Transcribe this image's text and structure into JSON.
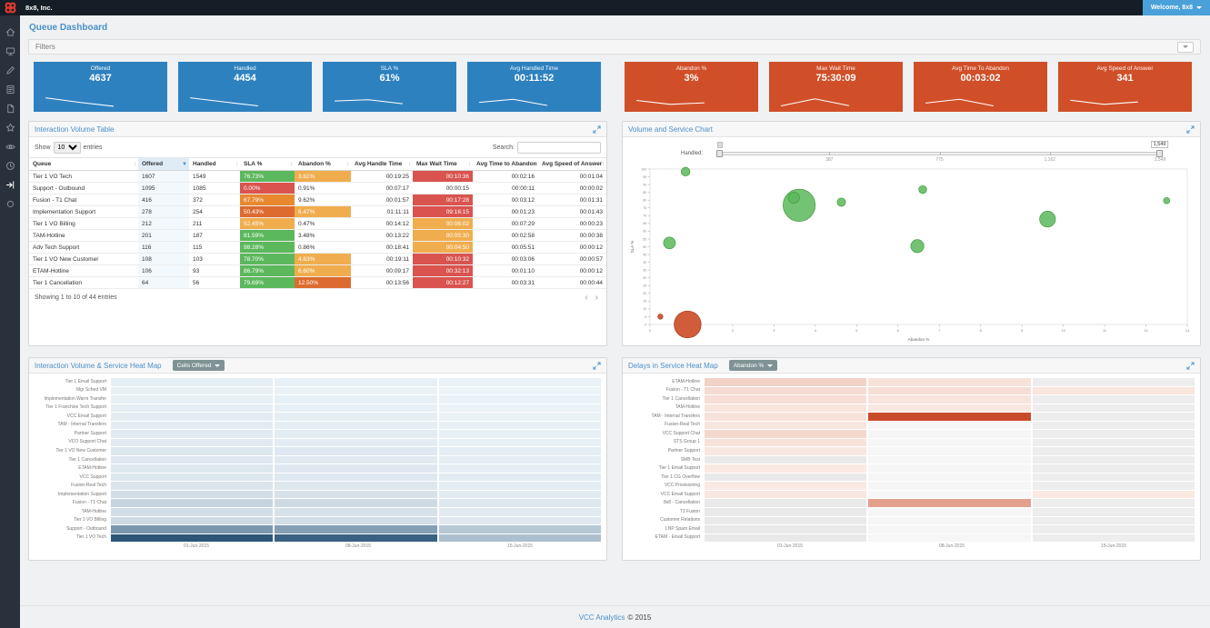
{
  "topbar": {
    "company": "8x8, Inc.",
    "welcome_label": "Welcome, 8x8",
    "accent_color": "#4aa0d8",
    "brand_color": "#e13a2f"
  },
  "sidebar": {
    "icons": [
      "home-icon",
      "dashboard-icon",
      "edit-icon",
      "report-icon",
      "document-icon",
      "star-icon",
      "eye-icon",
      "clock-icon",
      "share-icon",
      "status-icon"
    ]
  },
  "page": {
    "title": "Queue Dashboard",
    "filters_label": "Filters"
  },
  "kpis": {
    "blue_color": "#2e81bf",
    "red_color": "#d04f28",
    "blue": [
      {
        "label": "Offered",
        "value": "4637",
        "spark": [
          80,
          45,
          15
        ]
      },
      {
        "label": "Handled",
        "value": "4454",
        "spark": [
          80,
          48,
          18
        ]
      },
      {
        "label": "SLA %",
        "value": "61%",
        "spark": [
          55,
          65,
          35
        ]
      },
      {
        "label": "Avg Handled Time",
        "value": "00:11:52",
        "spark": [
          45,
          68,
          22
        ]
      }
    ],
    "red": [
      {
        "label": "Abandon %",
        "value": "3%",
        "spark": [
          60,
          30,
          42
        ]
      },
      {
        "label": "Max Wait Time",
        "value": "75:30:09",
        "spark": [
          18,
          72,
          20
        ]
      },
      {
        "label": "Avg Time To Abandon",
        "value": "00:03:02",
        "spark": [
          40,
          68,
          18
        ]
      },
      {
        "label": "Avg Speed of Answer",
        "value": "341",
        "spark": [
          62,
          30,
          48
        ]
      }
    ]
  },
  "table_panel": {
    "title": "Interaction Volume Table",
    "show_label": "Show",
    "page_size": "10",
    "entries_label": "entries",
    "search_label": "Search:",
    "summary": "Showing 1 to 10 of 44 entries",
    "sorted_column": "Offered",
    "columns": [
      "Queue",
      "Offered",
      "Handled",
      "SLA %",
      "Abandon %",
      "Avg Handle Time",
      "Max Wait Time",
      "Avg Time to Abandon",
      "Avg Speed of Answer"
    ],
    "rows": [
      {
        "queue": "Tier 1 VO Tech",
        "offered": "1607",
        "handled": "1549",
        "sla": "76.73%",
        "sla_c": "green",
        "abandon": "3.61%",
        "abandon_c": "yellow",
        "avg_handle": "00:19:25",
        "max_wait": "00:10:36",
        "max_wait_c": "red",
        "avg_abandon": "00:02:16",
        "avg_speed": "00:01:04"
      },
      {
        "queue": "Support - Outbound",
        "offered": "1095",
        "handled": "1085",
        "sla": "0.00%",
        "sla_c": "red",
        "abandon": "0.91%",
        "abandon_c": "",
        "avg_handle": "00:07:17",
        "max_wait": "00:00:15",
        "max_wait_c": "",
        "avg_abandon": "00:00:11",
        "avg_speed": "00:00:02"
      },
      {
        "queue": "Fusion - T1 Chat",
        "offered": "416",
        "handled": "372",
        "sla": "67.79%",
        "sla_c": "orange",
        "abandon": "9.62%",
        "abandon_c": "",
        "avg_handle": "00:01:57",
        "max_wait": "00:17:28",
        "max_wait_c": "red",
        "avg_abandon": "00:03:12",
        "avg_speed": "00:01:31"
      },
      {
        "queue": "Implementation Support",
        "offered": "278",
        "handled": "254",
        "sla": "50.43%",
        "sla_c": "deeporange",
        "abandon": "6.47%",
        "abandon_c": "yellow",
        "avg_handle": "01:11:11",
        "max_wait": "09:16:15",
        "max_wait_c": "red",
        "avg_abandon": "00:01:23",
        "avg_speed": "00:01:43"
      },
      {
        "queue": "Tier 1 VO Billing",
        "offered": "212",
        "handled": "211",
        "sla": "52.45%",
        "sla_c": "yellow",
        "abandon": "0.47%",
        "abandon_c": "",
        "avg_handle": "00:14:12",
        "max_wait": "00:06:02",
        "max_wait_c": "yellow",
        "avg_abandon": "00:07:29",
        "avg_speed": "00:00:23"
      },
      {
        "queue": "TAM-Hotline",
        "offered": "201",
        "handled": "187",
        "sla": "81.59%",
        "sla_c": "green",
        "abandon": "3.48%",
        "abandon_c": "",
        "avg_handle": "00:13:22",
        "max_wait": "00:05:30",
        "max_wait_c": "yellow",
        "avg_abandon": "00:02:58",
        "avg_speed": "00:00:38"
      },
      {
        "queue": "Adv Tech Support",
        "offered": "116",
        "handled": "115",
        "sla": "98.28%",
        "sla_c": "green",
        "abandon": "0.86%",
        "abandon_c": "",
        "avg_handle": "00:18:41",
        "max_wait": "00:04:50",
        "max_wait_c": "yellow",
        "avg_abandon": "00:05:51",
        "avg_speed": "00:00:12"
      },
      {
        "queue": "Tier 1 VO New Customer",
        "offered": "108",
        "handled": "103",
        "sla": "78.70%",
        "sla_c": "green",
        "abandon": "4.63%",
        "abandon_c": "yellow",
        "avg_handle": "00:19:11",
        "max_wait": "00:10:32",
        "max_wait_c": "red",
        "avg_abandon": "00:03:06",
        "avg_speed": "00:00:57"
      },
      {
        "queue": "ETAM-Hotline",
        "offered": "106",
        "handled": "93",
        "sla": "86.79%",
        "sla_c": "green",
        "abandon": "6.60%",
        "abandon_c": "yellow",
        "avg_handle": "00:09:17",
        "max_wait": "00:32:13",
        "max_wait_c": "red",
        "avg_abandon": "00:01:10",
        "avg_speed": "00:00:12"
      },
      {
        "queue": "Tier 1 Cancellation",
        "offered": "64",
        "handled": "56",
        "sla": "79.69%",
        "sla_c": "green",
        "abandon": "12.50%",
        "abandon_c": "deeporange",
        "avg_handle": "00:13:56",
        "max_wait": "00:12:27",
        "max_wait_c": "red",
        "avg_abandon": "00:03:31",
        "avg_speed": "00:00:44"
      }
    ]
  },
  "bubble_panel": {
    "title": "Volume and Service Chart",
    "slider_label": "Handled:",
    "slider_ticks": [
      "387",
      "775",
      "1,162",
      "1,549"
    ],
    "slider_value": "1,549",
    "chart_data": {
      "type": "scatter",
      "xlabel": "Abandon %",
      "ylabel": "SLA %",
      "xlim": [
        0,
        13
      ],
      "ylim": [
        0,
        100
      ],
      "size_field": "handled",
      "points": [
        {
          "label": "Tier 1 VO Tech",
          "x": 3.61,
          "y": 76.73,
          "size": 1549,
          "color": "green"
        },
        {
          "label": "Support - Outbound",
          "x": 0.91,
          "y": 0,
          "size": 1085,
          "color": "red"
        },
        {
          "label": "Fusion - T1 Chat",
          "x": 9.62,
          "y": 67.79,
          "size": 372,
          "color": "green"
        },
        {
          "label": "Implementation Support",
          "x": 6.47,
          "y": 50.43,
          "size": 254,
          "color": "green"
        },
        {
          "label": "Tier 1 VO Billing",
          "x": 0.47,
          "y": 52.45,
          "size": 211,
          "color": "green"
        },
        {
          "label": "TAM-Hotline",
          "x": 3.48,
          "y": 81.59,
          "size": 187,
          "color": "green"
        },
        {
          "label": "Adv Tech Support",
          "x": 0.86,
          "y": 98.28,
          "size": 115,
          "color": "green"
        },
        {
          "label": "Tier 1 VO New Customer",
          "x": 4.63,
          "y": 78.7,
          "size": 103,
          "color": "green"
        },
        {
          "label": "ETAM-Hotline",
          "x": 6.6,
          "y": 86.79,
          "size": 93,
          "color": "green"
        },
        {
          "label": "Tier 1 Cancellation",
          "x": 12.5,
          "y": 79.69,
          "size": 56,
          "color": "green"
        },
        {
          "label": "",
          "x": 0.25,
          "y": 5,
          "size": 38,
          "color": "red"
        }
      ]
    }
  },
  "heatmap_volume": {
    "title": "Interaction Volume & Service Heat Map",
    "dropdown_label": "Cells Offered",
    "chart_data": {
      "type": "heatmap",
      "columns": [
        "01-Jun-2015",
        "08-Jun-2015",
        "15-Jun-2015"
      ],
      "rows": [
        {
          "label": "Tier 1 Email Support",
          "values": [
            0.04,
            0.03,
            0.02
          ]
        },
        {
          "label": "Mgr Sched VM",
          "values": [
            0.03,
            0.02,
            0.01
          ]
        },
        {
          "label": "Implementation Warm Transfer",
          "values": [
            0.03,
            0.03,
            0.02
          ]
        },
        {
          "label": "Tier 1 Franchise Tech Support",
          "values": [
            0.04,
            0.03,
            0.02
          ]
        },
        {
          "label": "VCC Email Support",
          "values": [
            0.05,
            0.04,
            0.02
          ]
        },
        {
          "label": "TAM - Internal Transfers",
          "values": [
            0.05,
            0.04,
            0.03
          ]
        },
        {
          "label": "Partner Support",
          "values": [
            0.06,
            0.05,
            0.03
          ]
        },
        {
          "label": "VCO Support Chat",
          "values": [
            0.06,
            0.05,
            0.03
          ]
        },
        {
          "label": "Tier 1 VO New Customer",
          "values": [
            0.08,
            0.07,
            0.04
          ]
        },
        {
          "label": "Tier 1 Cancellation",
          "values": [
            0.07,
            0.06,
            0.04
          ]
        },
        {
          "label": "ETAM-Hotline",
          "values": [
            0.08,
            0.07,
            0.04
          ]
        },
        {
          "label": "VCC Support",
          "values": [
            0.08,
            0.07,
            0.05
          ]
        },
        {
          "label": "Fusion-Real Tech",
          "values": [
            0.09,
            0.08,
            0.05
          ]
        },
        {
          "label": "Implementation Support",
          "values": [
            0.13,
            0.11,
            0.06
          ]
        },
        {
          "label": "Fusion - T1 Chat",
          "values": [
            0.18,
            0.15,
            0.08
          ]
        },
        {
          "label": "TAM-Hotline",
          "values": [
            0.13,
            0.11,
            0.06
          ]
        },
        {
          "label": "Tier 1 VO Billing",
          "values": [
            0.15,
            0.13,
            0.07
          ]
        },
        {
          "label": "Support - Outbound",
          "values": [
            0.52,
            0.48,
            0.25
          ]
        },
        {
          "label": "Tier 1 VO Tech",
          "values": [
            0.88,
            0.82,
            0.3
          ]
        }
      ]
    }
  },
  "heatmap_delays": {
    "title": "Delays in Service Heat Map",
    "dropdown_label": "Abandon %",
    "chart_data": {
      "type": "heatmap",
      "columns": [
        "01-Jun-2015",
        "08-Jun-2015",
        "15-Jun-2015"
      ],
      "rows": [
        {
          "label": "ETAM-Hotline",
          "values": [
            0.16,
            0.06,
            0
          ]
        },
        {
          "label": "Fusion - T1 Chat",
          "values": [
            0.1,
            0.08,
            0.04
          ]
        },
        {
          "label": "Tier 1 Cancellation",
          "values": [
            0.08,
            0.05,
            0
          ]
        },
        {
          "label": "TAM-Hotline",
          "values": [
            0.05,
            0.03,
            0
          ]
        },
        {
          "label": "TAM - Internal Transfers",
          "values": [
            0.06,
            0.95,
            0
          ]
        },
        {
          "label": "Fusion-Real Tech",
          "values": [
            0.04,
            0,
            0
          ]
        },
        {
          "label": "VCC Support Chat",
          "values": [
            0.12,
            0,
            0
          ]
        },
        {
          "label": "STS Group 1",
          "values": [
            0.06,
            0,
            0
          ]
        },
        {
          "label": "Partner Support",
          "values": [
            0.03,
            0,
            0
          ]
        },
        {
          "label": "SMB Test",
          "values": [
            0,
            0,
            0
          ]
        },
        {
          "label": "Tier 1 Email Support",
          "values": [
            0.02,
            0,
            0
          ]
        },
        {
          "label": "Tier 1 CG Overflow",
          "values": [
            0,
            0,
            0
          ]
        },
        {
          "label": "VCC Provisioning",
          "values": [
            0.02,
            0,
            0
          ]
        },
        {
          "label": "VCC Email Support",
          "values": [
            0.03,
            0,
            0.02
          ]
        },
        {
          "label": "8x8 - Cancellation",
          "values": [
            0,
            0.45,
            0
          ]
        },
        {
          "label": "T2 Fusion",
          "values": [
            0,
            0,
            0
          ]
        },
        {
          "label": "Customer Relations",
          "values": [
            0,
            0,
            0
          ]
        },
        {
          "label": "LNP Spam Email",
          "values": [
            0,
            0,
            0
          ]
        },
        {
          "label": "ETAM - Email Support",
          "values": [
            0,
            0,
            0
          ]
        }
      ]
    }
  },
  "footer": {
    "brand": "VCC Analytics",
    "copyright": "© 2015"
  }
}
